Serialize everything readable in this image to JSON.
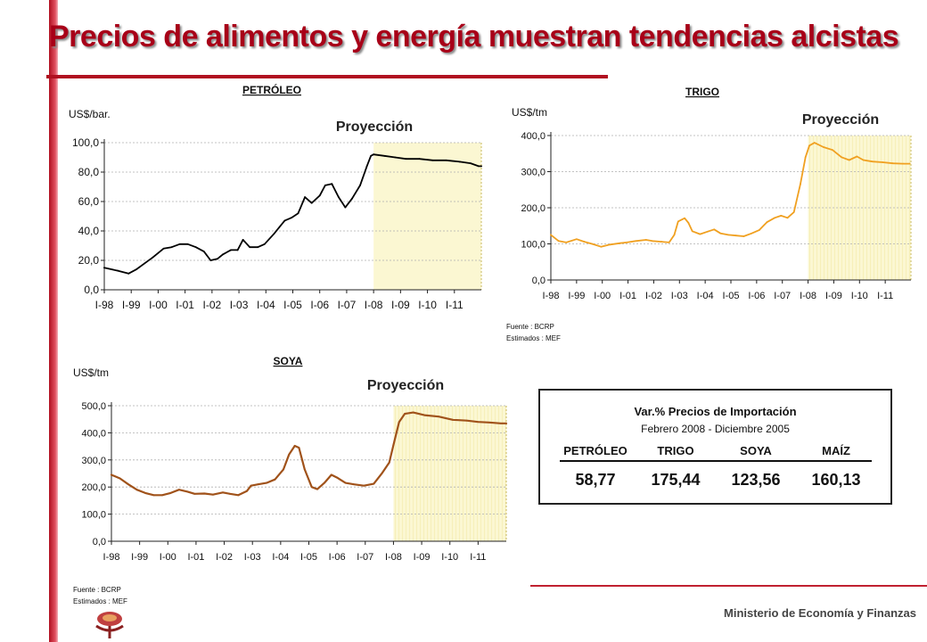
{
  "title": "Precios de alimentos y energía muestran tendencias alcistas",
  "footer": "Ministerio de Economía y Finanzas",
  "colors": {
    "title": "#a80018",
    "accent_bar": "#b01020",
    "petroleo": "#000000",
    "trigo": "#f0a020",
    "soya": "#a0521a",
    "projection_fill": "#fbf7d2"
  },
  "projection_label": "Proyección",
  "source_trigo": {
    "fuente": "Fuente       : BCRP",
    "estimados": "Estimados : MEF"
  },
  "source_soya": {
    "fuente": "Fuente       : BCRP",
    "estimados": "Estimados : MEF"
  },
  "table": {
    "title": "Var.% Precios de Importación",
    "subtitle": "Febrero 2008 - Diciembre 2005",
    "headers": [
      "PETRÓLEO",
      "TRIGO",
      "SOYA",
      "MAÍZ"
    ],
    "values": [
      "58,77",
      "175,44",
      "123,56",
      "160,13"
    ]
  },
  "chart_data": [
    {
      "id": "petroleo",
      "type": "line",
      "title": "PETRÓLEO",
      "ylabel": "US$/bar.",
      "ylim": [
        0,
        100
      ],
      "yticks": [
        "0,0",
        "20,0",
        "40,0",
        "60,0",
        "80,0",
        "100,0"
      ],
      "xlim": [
        1998,
        2012
      ],
      "xticks": [
        "I-98",
        "I-99",
        "I-00",
        "I-01",
        "I-02",
        "I-03",
        "I-04",
        "I-05",
        "I-06",
        "I-07",
        "I-08",
        "I-09",
        "I-10",
        "I-11"
      ],
      "projection_from": 2008,
      "grid": true,
      "series": [
        {
          "values": [
            [
              1998.0,
              15
            ],
            [
              1998.5,
              13
            ],
            [
              1998.9,
              11
            ],
            [
              1999.2,
              14
            ],
            [
              1999.5,
              18
            ],
            [
              1999.8,
              22
            ],
            [
              2000.2,
              28
            ],
            [
              2000.5,
              29
            ],
            [
              2000.8,
              31
            ],
            [
              2001.1,
              31
            ],
            [
              2001.4,
              29
            ],
            [
              2001.7,
              26
            ],
            [
              2001.95,
              20
            ],
            [
              2002.2,
              21
            ],
            [
              2002.4,
              24
            ],
            [
              2002.7,
              27
            ],
            [
              2002.95,
              27
            ],
            [
              2003.15,
              34
            ],
            [
              2003.4,
              29
            ],
            [
              2003.7,
              29
            ],
            [
              2003.95,
              31
            ],
            [
              2004.3,
              38
            ],
            [
              2004.7,
              47
            ],
            [
              2004.95,
              49
            ],
            [
              2005.2,
              52
            ],
            [
              2005.45,
              63
            ],
            [
              2005.7,
              59
            ],
            [
              2006.0,
              64
            ],
            [
              2006.2,
              71
            ],
            [
              2006.45,
              72
            ],
            [
              2006.7,
              63
            ],
            [
              2006.95,
              56
            ],
            [
              2007.2,
              62
            ],
            [
              2007.5,
              71
            ],
            [
              2007.75,
              84
            ],
            [
              2007.9,
              91
            ],
            [
              2008.0,
              92
            ],
            [
              2008.4,
              91
            ],
            [
              2008.8,
              90
            ],
            [
              2009.2,
              89
            ],
            [
              2009.7,
              89
            ],
            [
              2010.2,
              88
            ],
            [
              2010.7,
              88
            ],
            [
              2011.2,
              87
            ],
            [
              2011.6,
              86
            ],
            [
              2011.9,
              84
            ],
            [
              2012.0,
              84
            ]
          ]
        }
      ]
    },
    {
      "id": "trigo",
      "type": "line",
      "title": "TRIGO",
      "ylabel": "US$/tm",
      "ylim": [
        0,
        400
      ],
      "yticks": [
        "0,0",
        "100,0",
        "200,0",
        "300,0",
        "400,0"
      ],
      "xlim": [
        1998,
        2012
      ],
      "xticks": [
        "I-98",
        "I-99",
        "I-00",
        "I-01",
        "I-02",
        "I-03",
        "I-04",
        "I-05",
        "I-06",
        "I-07",
        "I-08",
        "I-09",
        "I-10",
        "I-11"
      ],
      "projection_from": 2008,
      "grid": true,
      "series": [
        {
          "values": [
            [
              1998.0,
              125
            ],
            [
              1998.3,
              108
            ],
            [
              1998.6,
              104
            ],
            [
              1999.0,
              113
            ],
            [
              1999.3,
              106
            ],
            [
              1999.6,
              100
            ],
            [
              1999.95,
              92
            ],
            [
              2000.3,
              98
            ],
            [
              2000.7,
              102
            ],
            [
              2000.95,
              104
            ],
            [
              2001.3,
              108
            ],
            [
              2001.7,
              111
            ],
            [
              2001.95,
              108
            ],
            [
              2002.3,
              106
            ],
            [
              2002.6,
              104
            ],
            [
              2002.8,
              125
            ],
            [
              2002.95,
              162
            ],
            [
              2003.2,
              171
            ],
            [
              2003.35,
              158
            ],
            [
              2003.5,
              135
            ],
            [
              2003.8,
              127
            ],
            [
              2004.1,
              134
            ],
            [
              2004.35,
              140
            ],
            [
              2004.6,
              129
            ],
            [
              2004.9,
              125
            ],
            [
              2005.2,
              123
            ],
            [
              2005.5,
              121
            ],
            [
              2005.8,
              129
            ],
            [
              2006.1,
              138
            ],
            [
              2006.4,
              160
            ],
            [
              2006.7,
              172
            ],
            [
              2006.95,
              178
            ],
            [
              2007.2,
              172
            ],
            [
              2007.45,
              188
            ],
            [
              2007.7,
              265
            ],
            [
              2007.9,
              340
            ],
            [
              2008.05,
              372
            ],
            [
              2008.25,
              380
            ],
            [
              2008.6,
              368
            ],
            [
              2008.95,
              360
            ],
            [
              2009.3,
              340
            ],
            [
              2009.6,
              332
            ],
            [
              2009.9,
              342
            ],
            [
              2010.15,
              332
            ],
            [
              2010.5,
              328
            ],
            [
              2010.9,
              326
            ],
            [
              2011.3,
              323
            ],
            [
              2011.7,
              322
            ],
            [
              2011.95,
              322
            ]
          ]
        }
      ]
    },
    {
      "id": "soya",
      "type": "line",
      "title": "SOYA",
      "ylabel": "US$/tm",
      "ylim": [
        0,
        500
      ],
      "yticks": [
        "0,0",
        "100,0",
        "200,0",
        "300,0",
        "400,0",
        "500,0"
      ],
      "xlim": [
        1998,
        2012
      ],
      "xticks": [
        "I-98",
        "I-99",
        "I-00",
        "I-01",
        "I-02",
        "I-03",
        "I-04",
        "I-05",
        "I-06",
        "I-07",
        "I-08",
        "I-09",
        "I-10",
        "I-11"
      ],
      "projection_from": 2008,
      "grid": true,
      "series": [
        {
          "values": [
            [
              1998.0,
              245
            ],
            [
              1998.3,
              232
            ],
            [
              1998.6,
              210
            ],
            [
              1998.9,
              190
            ],
            [
              1999.2,
              178
            ],
            [
              1999.5,
              170
            ],
            [
              1999.8,
              170
            ],
            [
              2000.1,
              178
            ],
            [
              2000.4,
              190
            ],
            [
              2000.7,
              183
            ],
            [
              2000.95,
              175
            ],
            [
              2001.3,
              176
            ],
            [
              2001.6,
              172
            ],
            [
              2001.95,
              180
            ],
            [
              2002.2,
              175
            ],
            [
              2002.5,
              170
            ],
            [
              2002.8,
              185
            ],
            [
              2002.95,
              205
            ],
            [
              2003.2,
              210
            ],
            [
              2003.5,
              215
            ],
            [
              2003.8,
              228
            ],
            [
              2004.1,
              265
            ],
            [
              2004.3,
              320
            ],
            [
              2004.5,
              352
            ],
            [
              2004.65,
              345
            ],
            [
              2004.85,
              265
            ],
            [
              2005.1,
              200
            ],
            [
              2005.3,
              192
            ],
            [
              2005.55,
              215
            ],
            [
              2005.8,
              245
            ],
            [
              2006.0,
              235
            ],
            [
              2006.3,
              215
            ],
            [
              2006.6,
              210
            ],
            [
              2006.95,
              205
            ],
            [
              2007.3,
              212
            ],
            [
              2007.6,
              252
            ],
            [
              2007.85,
              290
            ],
            [
              2008.0,
              355
            ],
            [
              2008.2,
              440
            ],
            [
              2008.4,
              470
            ],
            [
              2008.7,
              475
            ],
            [
              2009.1,
              465
            ],
            [
              2009.6,
              460
            ],
            [
              2010.1,
              448
            ],
            [
              2010.6,
              445
            ],
            [
              2011.0,
              440
            ],
            [
              2011.4,
              438
            ],
            [
              2011.8,
              435
            ],
            [
              2012.0,
              435
            ]
          ]
        }
      ]
    }
  ]
}
